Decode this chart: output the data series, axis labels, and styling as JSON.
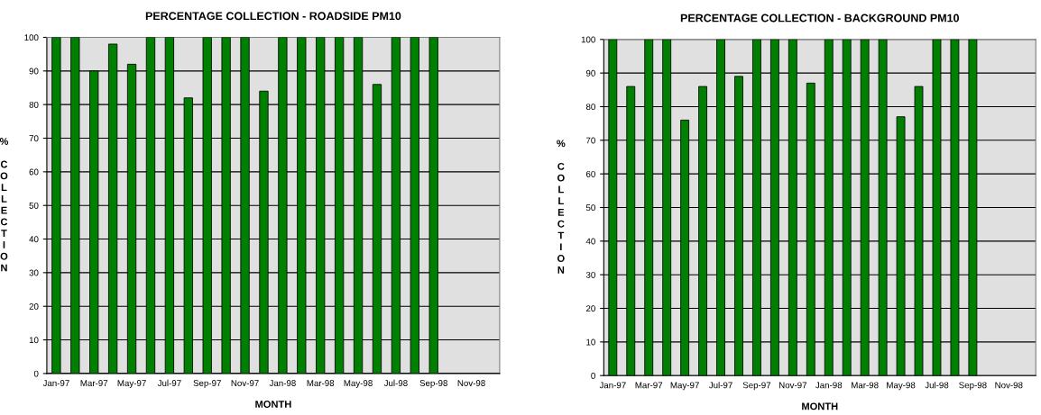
{
  "chart_data": [
    {
      "type": "bar",
      "title": "PERCENTAGE COLLECTION - ROADSIDE PM10",
      "xlabel": "MONTH",
      "ylabel": "% COLLECTION",
      "categories": [
        "Jan-97",
        null,
        "Mar-97",
        null,
        "May-97",
        null,
        "Jul-97",
        null,
        "Sep-97",
        null,
        "Nov-97",
        null,
        "Jan-98",
        null,
        "Mar-98",
        null,
        "May-98",
        null,
        "Jul-98",
        null,
        "Sep-98",
        null,
        "Nov-98",
        null
      ],
      "values": [
        100,
        100,
        90,
        98,
        92,
        100,
        100,
        82,
        100,
        100,
        100,
        84,
        100,
        100,
        100,
        100,
        100,
        86,
        100,
        100,
        100,
        null,
        null,
        null
      ],
      "color": "#008000",
      "ylim": [
        0,
        100
      ],
      "yticks": [
        0,
        10,
        20,
        30,
        40,
        50,
        60,
        70,
        80,
        90,
        100
      ],
      "grid": "y",
      "legend": false
    },
    {
      "type": "bar",
      "title": "PERCENTAGE COLLECTION - BACKGROUND PM10",
      "xlabel": "MONTH",
      "ylabel": "% COLLECTION",
      "categories": [
        "Jan-97",
        null,
        "Mar-97",
        null,
        "May-97",
        null,
        "Jul-97",
        null,
        "Sep-97",
        null,
        "Nov-97",
        null,
        "Jan-98",
        null,
        "Mar-98",
        null,
        "May-98",
        null,
        "Jul-98",
        null,
        "Sep-98",
        null,
        "Nov-98",
        null
      ],
      "values": [
        100,
        86,
        100,
        100,
        76,
        86,
        100,
        89,
        100,
        100,
        100,
        87,
        100,
        100,
        100,
        100,
        77,
        86,
        100,
        100,
        100,
        null,
        null,
        null
      ],
      "color": "#008000",
      "ylim": [
        0,
        100
      ],
      "yticks": [
        0,
        10,
        20,
        30,
        40,
        50,
        60,
        70,
        80,
        90,
        100
      ],
      "grid": "y",
      "legend": false
    }
  ]
}
